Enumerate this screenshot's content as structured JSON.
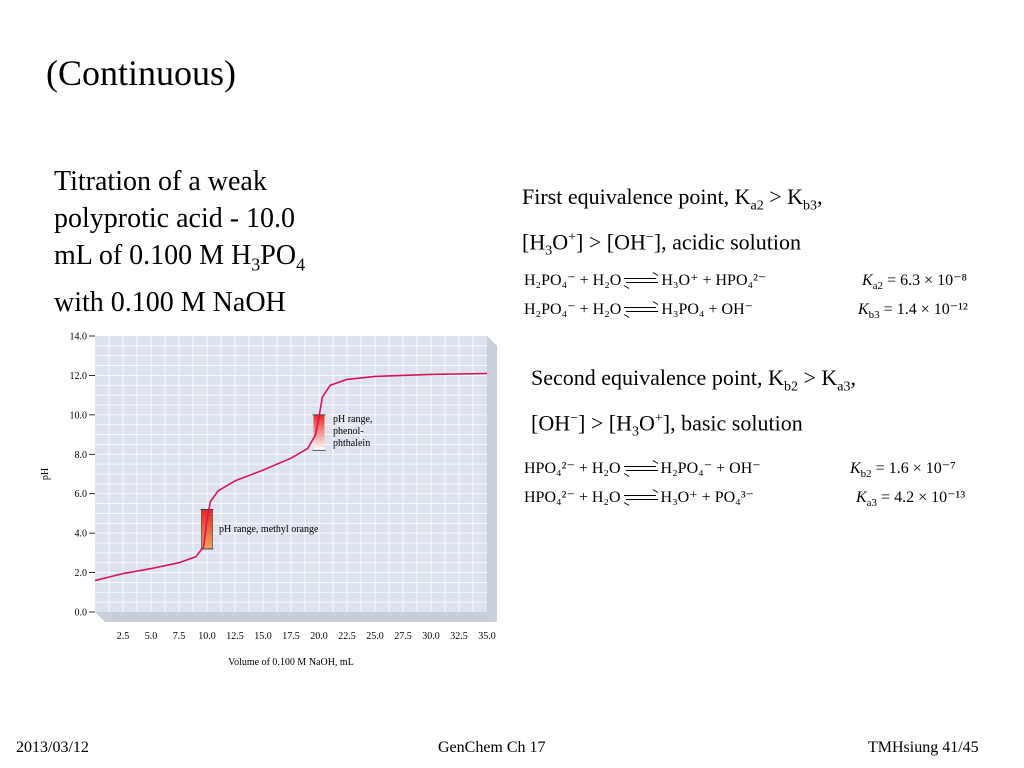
{
  "slide": {
    "title": "(Continuous)",
    "left_lines": [
      "Titration of a weak",
      "polyprotic acid - 10.0"
    ],
    "left_line3_pre": "mL of 0.100 M H",
    "left_line3_sub1": "3",
    "left_line3_mid": "PO",
    "left_line3_sub2": "4",
    "left_line4": "with 0.100 M NaOH"
  },
  "note1": {
    "l1_pre": "First equivalence point, K",
    "l1_sub1": "a2",
    "l1_mid": " > K",
    "l1_sub2": "b3",
    "l1_end": ",",
    "l2_a": "[H",
    "l2_sub": "3",
    "l2_b": "O",
    "l2_sup1": "+",
    "l2_c": "] > [OH",
    "l2_sup2": "−",
    "l2_d": "], acidic solution"
  },
  "note2": {
    "l1_pre": "Second equivalence point, K",
    "l1_sub1": "b2",
    "l1_mid": " > K",
    "l1_sub2": "a3",
    "l1_end": ",",
    "l2_a": "[OH",
    "l2_sup1": "−",
    "l2_b": "] > [H",
    "l2_sub": "3",
    "l2_c": "O",
    "l2_sup2": "+",
    "l2_d": "], basic solution"
  },
  "equations": {
    "eq1": {
      "lhs": "H₂PO₄⁻ + H₂O",
      "rhs": "H₃O⁺ + HPO₄²⁻",
      "k_sym": "K",
      "k_sub": "a2",
      "k_val": "= 6.3 × 10⁻⁸"
    },
    "eq2": {
      "lhs": "H₂PO₄⁻ + H₂O",
      "rhs": "H₃PO₄ + OH⁻",
      "k_sym": "K",
      "k_sub": "b3",
      "k_val": "= 1.4 × 10⁻¹²"
    },
    "eq3": {
      "lhs": "HPO₄²⁻ + H₂O",
      "rhs": "H₂PO₄⁻ + OH⁻",
      "k_sym": "K",
      "k_sub": "b2",
      "k_val": "= 1.6 × 10⁻⁷"
    },
    "eq4": {
      "lhs": "HPO₄²⁻ + H₂O",
      "rhs": "H₃O⁺ + PO₄³⁻",
      "k_sym": "K",
      "k_sub": "a3",
      "k_val": "= 4.2 × 10⁻¹³"
    }
  },
  "footer": {
    "date": "2013/03/12",
    "course": "GenChem Ch 17",
    "page": "TMHsiung 41/45"
  },
  "colors": {
    "curve": "#d4145a",
    "grid_bg": "#dde3ee",
    "indicator_top": "#e8281c",
    "indicator_bottom": "#f2a15c"
  },
  "chart_data": {
    "type": "line",
    "xlabel": "Volume of 0.100 M NaOH, mL",
    "ylabel": "pH",
    "xlim": [
      0,
      35
    ],
    "ylim": [
      0,
      14
    ],
    "xticks": [
      "2.5",
      "5.0",
      "7.5",
      "10.0",
      "12.5",
      "15.0",
      "17.5",
      "20.0",
      "22.5",
      "25.0",
      "27.5",
      "30.0",
      "32.5",
      "35.0"
    ],
    "yticks": [
      "0.0",
      "2.0",
      "4.0",
      "6.0",
      "8.0",
      "10.0",
      "12.0",
      "14.0"
    ],
    "grid": true,
    "series": [
      {
        "x": [
          0,
          2.5,
          5.0,
          7.5,
          9.0,
          9.7,
          10.0,
          10.3,
          11.0,
          12.5,
          15.0,
          17.5,
          19.0,
          19.7,
          20.0,
          20.3,
          21.0,
          22.5,
          25.0,
          30.0,
          35.0
        ],
        "y": [
          1.6,
          1.95,
          2.2,
          2.5,
          2.8,
          3.3,
          4.7,
          5.6,
          6.15,
          6.65,
          7.2,
          7.8,
          8.3,
          9.0,
          9.9,
          10.9,
          11.5,
          11.8,
          11.95,
          12.05,
          12.1
        ]
      }
    ],
    "indicators": [
      {
        "label": "pH range, methyl orange",
        "x": 10.0,
        "ph_low": 3.2,
        "ph_high": 5.2
      },
      {
        "label_lines": [
          "pH range,",
          "phenol-",
          "phthalein"
        ],
        "x": 20.0,
        "ph_low": 8.2,
        "ph_high": 10.0
      }
    ]
  }
}
